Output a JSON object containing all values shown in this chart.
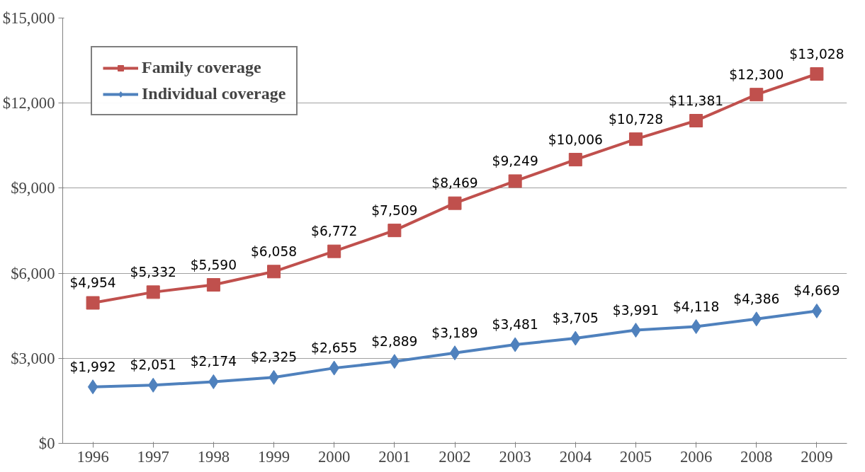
{
  "chart_data": {
    "type": "line",
    "categories": [
      "1996",
      "1997",
      "1998",
      "1999",
      "2000",
      "2001",
      "2002",
      "2003",
      "2004",
      "2005",
      "2006",
      "2008",
      "2009"
    ],
    "series": [
      {
        "name": "Family coverage",
        "color": "#c0504d",
        "marker": "square",
        "values": [
          4954,
          5332,
          5590,
          6058,
          6772,
          7509,
          8469,
          9249,
          10006,
          10728,
          11381,
          12300,
          13028
        ],
        "value_labels": [
          "$4,954",
          "$5,332",
          "$5,590",
          "$6,058",
          "$6,772",
          "$7,509",
          "$8,469",
          "$9,249",
          "$10,006",
          "$10,728",
          "$11,381",
          "$12,300",
          "$13,028"
        ]
      },
      {
        "name": "Individual coverage",
        "color": "#4f81bd",
        "marker": "diamond",
        "values": [
          1992,
          2051,
          2174,
          2325,
          2655,
          2889,
          3189,
          3481,
          3705,
          3991,
          4118,
          4386,
          4669
        ],
        "value_labels": [
          "$1,992",
          "$2,051",
          "$2,174",
          "$2,325",
          "$2,655",
          "$2,889",
          "$3,189",
          "$3,481",
          "$3,705",
          "$3,991",
          "$4,118",
          "$4,386",
          "$4,669"
        ]
      }
    ],
    "ylim": [
      0,
      15000
    ],
    "yticks": [
      {
        "value": 0,
        "label": "$0"
      },
      {
        "value": 3000,
        "label": "$3,000"
      },
      {
        "value": 6000,
        "label": "$6,000"
      },
      {
        "value": 9000,
        "label": "$9,000"
      },
      {
        "value": 12000,
        "label": "$12,000"
      },
      {
        "value": 15000,
        "label": "$15,000"
      }
    ],
    "grid": "y",
    "legend": "top left",
    "line_style": "solid"
  }
}
